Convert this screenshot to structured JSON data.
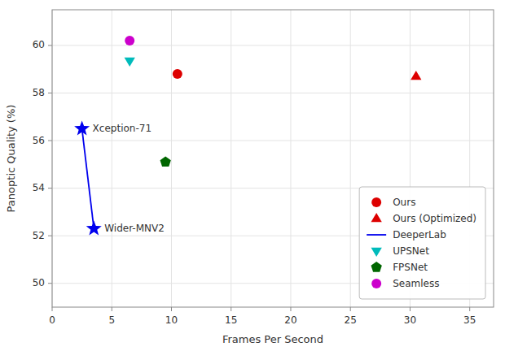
{
  "chart_data": {
    "type": "scatter",
    "xlabel": "Frames Per Second",
    "ylabel": "Panoptic Quality (%)",
    "xlim": [
      0,
      37
    ],
    "ylim": [
      49,
      61.5
    ],
    "xticks": [
      0,
      5,
      10,
      15,
      20,
      25,
      30,
      35
    ],
    "yticks": [
      50,
      52,
      54,
      56,
      58,
      60
    ],
    "grid": true,
    "legend": "lower right",
    "series": [
      {
        "name": "Ours",
        "color": "#dd0000",
        "marker": "circle",
        "x": [
          10.5
        ],
        "values": [
          58.8
        ]
      },
      {
        "name": "Ours (Optimized)",
        "color": "#dd0000",
        "marker": "triangle-up",
        "x": [
          30.5
        ],
        "values": [
          58.7
        ]
      },
      {
        "name": "DeeperLab",
        "type": "line",
        "color": "#0000ee",
        "marker": "star",
        "line_style": "solid",
        "x": [
          2.5,
          3.5
        ],
        "values": [
          56.5,
          52.3
        ]
      },
      {
        "name": "UPSNet",
        "color": "#00bbbb",
        "marker": "triangle-down",
        "x": [
          6.5
        ],
        "values": [
          59.35
        ]
      },
      {
        "name": "FPSNet",
        "color": "#006600",
        "marker": "pentagon",
        "x": [
          9.5
        ],
        "values": [
          55.1
        ]
      },
      {
        "name": "Seamless",
        "color": "#cc00cc",
        "marker": "circle",
        "x": [
          6.5
        ],
        "values": [
          60.2
        ]
      }
    ],
    "annotations": [
      {
        "text": "Xception-71",
        "x": 2.5,
        "y": 56.5
      },
      {
        "text": "Wider-MNV2",
        "x": 3.5,
        "y": 52.3
      }
    ]
  }
}
